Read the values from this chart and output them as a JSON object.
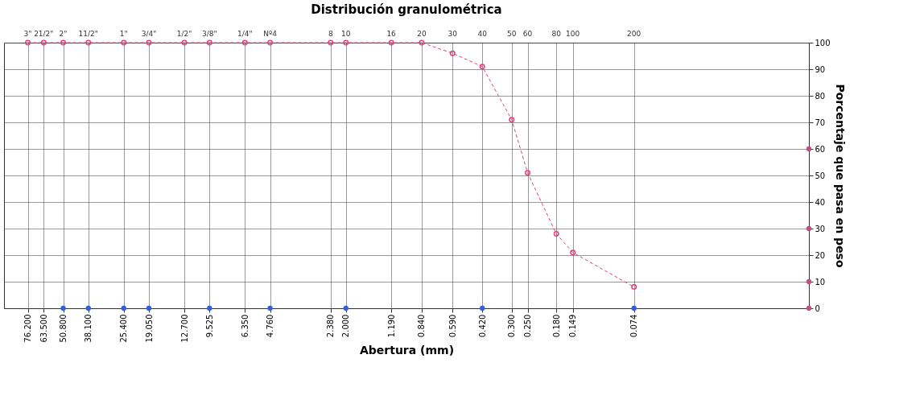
{
  "chart_data": {
    "type": "line",
    "title": "Distribución granulométrica",
    "xlabel": "Abertura (mm)",
    "ylabel": "Porcentaje que pasa en peso",
    "xlim": [
      100,
      0.01
    ],
    "ylim": [
      0,
      100
    ],
    "yticks": [
      0,
      10,
      20,
      30,
      40,
      50,
      60,
      70,
      80,
      90,
      100
    ],
    "xticks": [
      {
        "value": 76.2,
        "label": "76.200"
      },
      {
        "value": 63.5,
        "label": "63.500"
      },
      {
        "value": 50.8,
        "label": "50.800"
      },
      {
        "value": 38.1,
        "label": "38.100"
      },
      {
        "value": 25.4,
        "label": "25.400"
      },
      {
        "value": 19.05,
        "label": "19.050"
      },
      {
        "value": 12.7,
        "label": "12.700"
      },
      {
        "value": 9.525,
        "label": "9.525"
      },
      {
        "value": 6.35,
        "label": "6.350"
      },
      {
        "value": 4.76,
        "label": "4.760"
      },
      {
        "value": 2.38,
        "label": "2.380"
      },
      {
        "value": 2.0,
        "label": "2.000"
      },
      {
        "value": 1.19,
        "label": "1.190"
      },
      {
        "value": 0.84,
        "label": "0.840"
      },
      {
        "value": 0.59,
        "label": "0.590"
      },
      {
        "value": 0.42,
        "label": "0.420"
      },
      {
        "value": 0.3,
        "label": "0.300"
      },
      {
        "value": 0.25,
        "label": "0.250"
      },
      {
        "value": 0.18,
        "label": "0.180"
      },
      {
        "value": 0.149,
        "label": "0.149"
      },
      {
        "value": 0.074,
        "label": "0.074"
      }
    ],
    "annotations": [
      "3\"",
      "21/2\"",
      "2\"",
      "11/2\"",
      "1\"",
      "3/4\"",
      "1/2\"",
      "3/8\"",
      "1/4\"",
      "Nº4",
      "8",
      "10",
      "16",
      "20",
      "30",
      "40",
      "50",
      "60",
      "80",
      "100",
      "200"
    ],
    "log": "x",
    "grid": true,
    "marker": "circle",
    "line_style": "dashed",
    "series": [
      {
        "color": "#e0407a",
        "x": [
          76.2,
          63.5,
          50.8,
          38.1,
          25.4,
          19.05,
          12.7,
          9.525,
          6.35,
          4.76,
          2.38,
          2.0,
          1.19,
          0.84,
          0.59,
          0.42,
          0.3,
          0.25,
          0.18,
          0.149,
          0.074
        ],
        "values": [
          100,
          100,
          100,
          100,
          100,
          100,
          100,
          100,
          100,
          100,
          100,
          100,
          100,
          100,
          96,
          91,
          71,
          51,
          28,
          21,
          8
        ]
      },
      {
        "type": "scatter",
        "color": "#3060e0",
        "x": [
          50.8,
          38.1,
          25.4,
          19.05,
          9.525,
          4.76,
          2.0,
          0.42,
          0.074
        ],
        "values": [
          0,
          0,
          0,
          0,
          0,
          0,
          0,
          0,
          0
        ]
      },
      {
        "type": "scatter",
        "color": "#c05080",
        "x": [
          0.01,
          0.01,
          0.01,
          0.01
        ],
        "values": [
          60,
          30,
          10,
          0
        ]
      }
    ]
  }
}
